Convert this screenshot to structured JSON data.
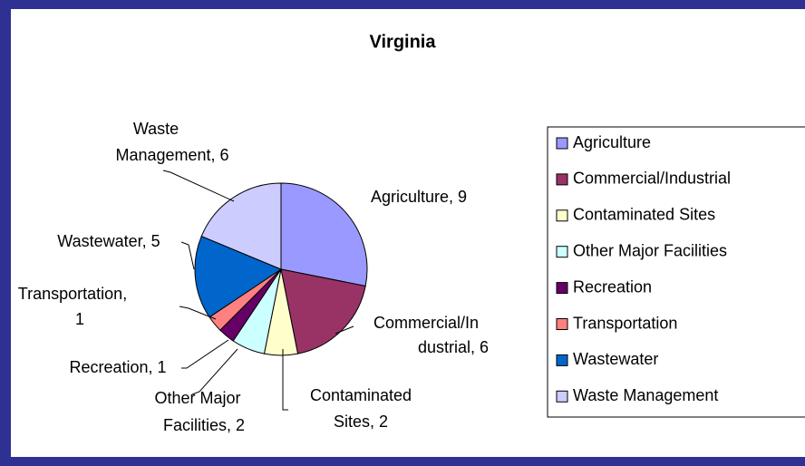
{
  "chart_data": {
    "type": "pie",
    "title": "Virginia",
    "categories": [
      "Agriculture",
      "Commercial/Industrial",
      "Contaminated Sites",
      "Other Major Facilities",
      "Recreation",
      "Transportation",
      "Wastewater",
      "Waste Management"
    ],
    "values": [
      9,
      6,
      2,
      2,
      1,
      1,
      5,
      6
    ],
    "value_labels": [
      [
        "Agriculture, 9"
      ],
      [
        "Commercial/In",
        "dustrial, 6"
      ],
      [
        "Contaminated",
        "Sites, 2"
      ],
      [
        "Other Major",
        "Facilities, 2"
      ],
      [
        "Recreation, 1"
      ],
      [
        "Transportation,",
        "1"
      ],
      [
        "Wastewater, 5"
      ],
      [
        "Waste",
        "Management, 6"
      ]
    ],
    "colors": [
      "#9999ff",
      "#993366",
      "#ffffcc",
      "#ccffff",
      "#660066",
      "#ff8080",
      "#0066cc",
      "#ccccff"
    ],
    "legend": "right"
  }
}
